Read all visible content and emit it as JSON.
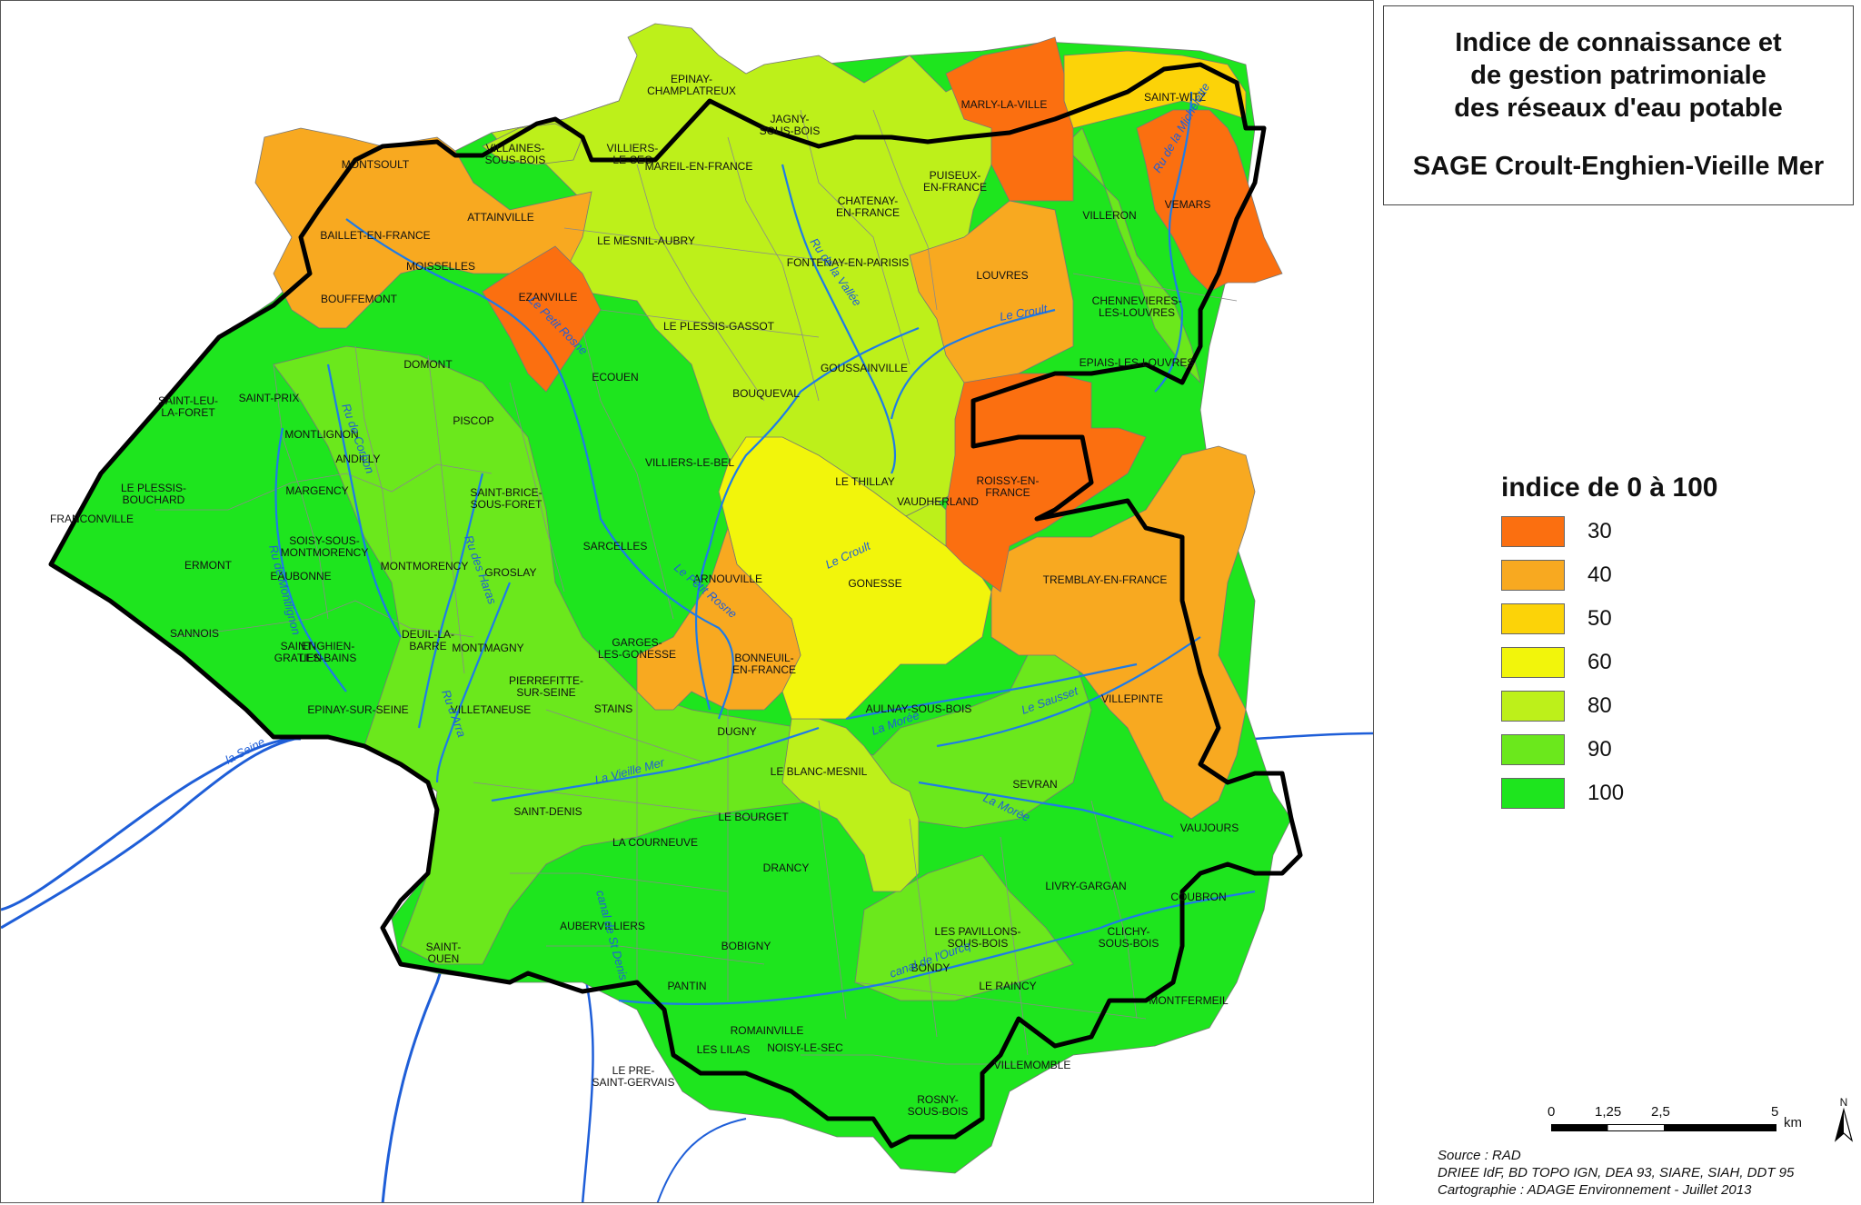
{
  "title": {
    "line1": "Indice de connaissance et",
    "line2": "de gestion patrimoniale",
    "line3": "des réseaux d'eau potable",
    "line4": "SAGE Croult-Enghien-Vieille Mer"
  },
  "legend": {
    "title": "indice de 0 à 100",
    "items": [
      {
        "label": "30",
        "color": "#fb6f10"
      },
      {
        "label": "40",
        "color": "#f8a920"
      },
      {
        "label": "50",
        "color": "#fcd308"
      },
      {
        "label": "60",
        "color": "#f2f50b"
      },
      {
        "label": "80",
        "color": "#bdf01a"
      },
      {
        "label": "90",
        "color": "#6be81c"
      },
      {
        "label": "100",
        "color": "#1ee51e"
      }
    ]
  },
  "scale": {
    "ticks": [
      "0",
      "1,25",
      "2,5",
      "5"
    ],
    "unit": "km",
    "north": "N"
  },
  "source": {
    "line1": "Source : RAD",
    "line2": "DRIEE IdF, BD TOPO IGN, DEA 93, SIARE, SIAH, DDT 95",
    "line3": "Cartographie : ADAGE Environnement - Juillet 2013"
  },
  "communes": [
    "EPINAY-CHAMPLATREUX",
    "JAGNY-SOUS-BOIS",
    "VILLIERS-LE-SEC",
    "VILLAINES-SOUS-BOIS",
    "MARLY-LA-VILLE",
    "SAINT-WITZ",
    "MONTSOULT",
    "MAREIL-EN-FRANCE",
    "PUISEUX-EN-FRANCE",
    "CHATENAY-EN-FRANCE",
    "VEMARS",
    "ATTAINVILLE",
    "BAILLET-EN-FRANCE",
    "VILLERON",
    "LE MESNIL-AUBRY",
    "FONTENAY-EN-PARISIS",
    "MOISSELLES",
    "LOUVRES",
    "EZANVILLE",
    "BOUFFEMONT",
    "CHENNEVIERES-LES-LOUVRES",
    "LE PLESSIS-GASSOT",
    "DOMONT",
    "GOUSSAINVILLE",
    "EPIAIS-LES-LOUVRES",
    "ECOUEN",
    "SAINT-LEU-LA-FORET",
    "SAINT-PRIX",
    "BOUQUEVAL",
    "PISCOP",
    "MONTLIGNON",
    "ANDILLY",
    "VILLIERS-LE-BEL",
    "LE PLESSIS-BOUCHARD",
    "MARGENCY",
    "SAINT-BRICE-SOUS-FORET",
    "LE THILLAY",
    "ROISSY-EN-FRANCE",
    "VAUDHERLAND",
    "SOISY-SOUS-MONTMORENCY",
    "FRANCONVILLE",
    "ERMONT",
    "EAUBONNE",
    "MONTMORENCY",
    "SARCELLES",
    "GROSLAY",
    "ARNOUVILLE",
    "GONESSE",
    "TREMBLAY-EN-FRANCE",
    "SANNOIS",
    "SAINT-GRATIEN",
    "ENGHIEN-LES-BAINS",
    "DEUIL-LA-BARRE",
    "GARGES-LES-GONESSE",
    "BONNEUIL-EN-FRANCE",
    "MONTMAGNY",
    "PIERREFITTE-SUR-SEINE",
    "EPINAY-SUR-SEINE",
    "VILLETANEUSE",
    "STAINS",
    "AULNAY-SOUS-BOIS",
    "VILLEPINTE",
    "DUGNY",
    "LE BLANC-MESNIL",
    "SEVRAN",
    "SAINT-DENIS",
    "LE BOURGET",
    "VAUJOURS",
    "LA COURNEUVE",
    "DRANCY",
    "LIVRY-GARGAN",
    "COUBRON",
    "SAINT-OUEN",
    "AUBERVILLIERS",
    "LES PAVILLONS-SOUS-BOIS",
    "CLICHY-SOUS-BOIS",
    "BOBIGNY",
    "BONDY",
    "PANTIN",
    "LE RAINCY",
    "MONTFERMEIL",
    "ROMAINVILLE",
    "NOISY-LE-SEC",
    "LES LILAS",
    "VILLEMOMBLE",
    "LE PRE-SAINT-GERVAIS",
    "ROSNY-SOUS-BOIS"
  ],
  "rivers": [
    "la Seine",
    "Le Petit Rosne",
    "Ru de Corbon",
    "Ru de Montlignon",
    "Ru des Haras",
    "Ru d'Arra",
    "Le Petit Rosne",
    "Le Croult",
    "Le Croult",
    "Ru de la Vallée",
    "Ru de la Michelette",
    "La Morée",
    "Le Sausset",
    "La Vieille Mer",
    "La Morée",
    "canal de l'Ourcq",
    "canal de St Denis"
  ]
}
